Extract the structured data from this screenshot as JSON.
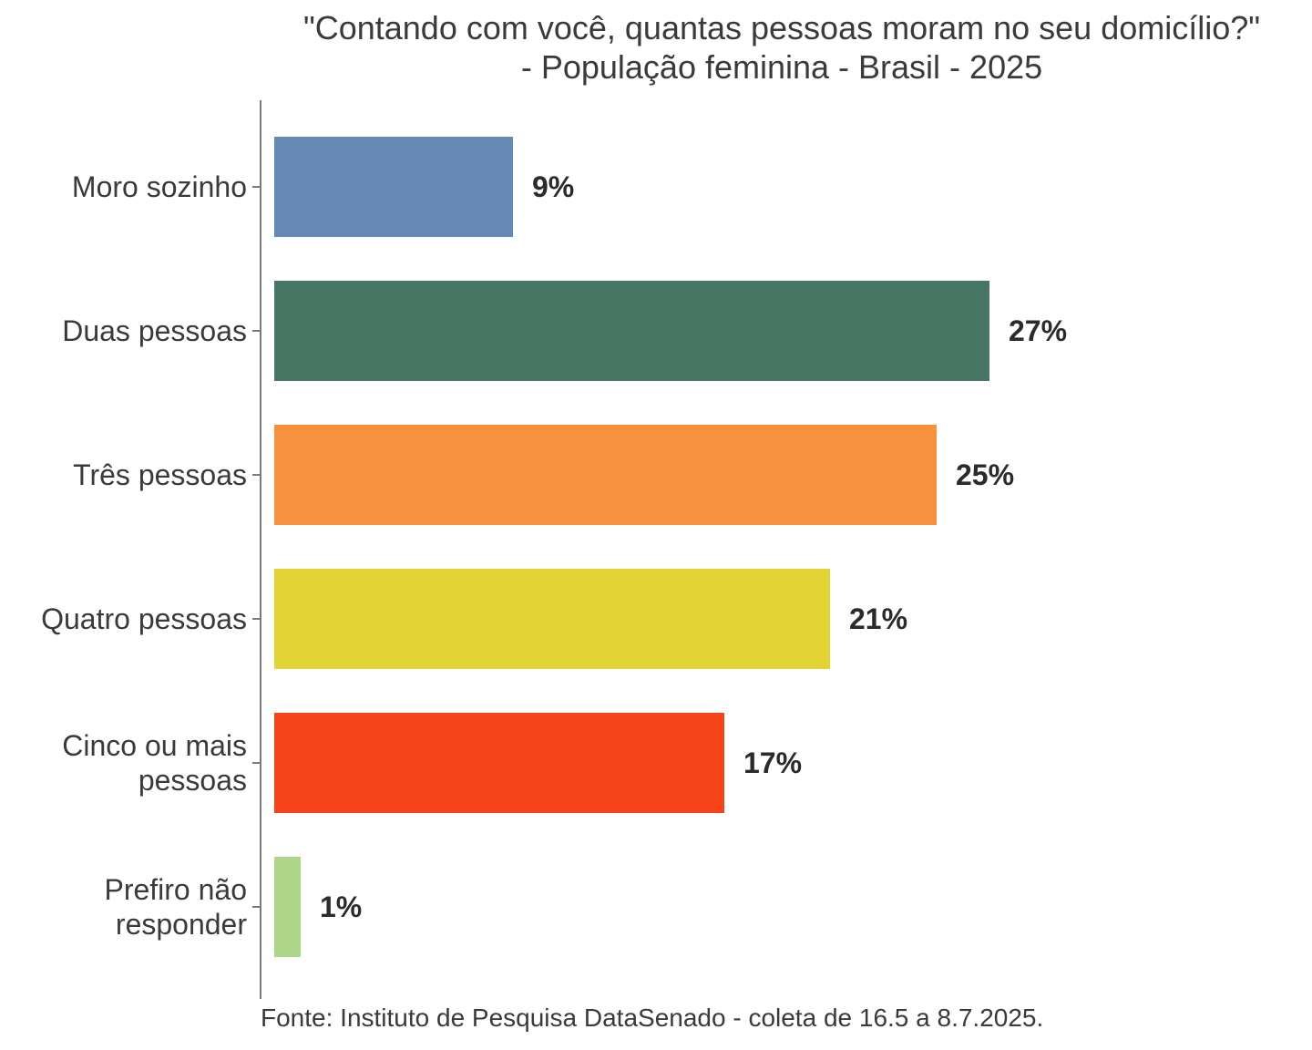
{
  "title": {
    "line1": "\"Contando com você, quantas pessoas moram no seu domicílio?\"",
    "line2": "- População feminina - Brasil - 2025"
  },
  "source": "Fonte: Instituto de Pesquisa DataSenado - coleta de 16.5 a 8.7.2025.",
  "chart_data": {
    "type": "bar",
    "orientation": "horizontal",
    "title": "\"Contando com você, quantas pessoas moram no seu domicílio?\" - População feminina - Brasil - 2025",
    "categories": [
      "Moro sozinho",
      "Duas pessoas",
      "Três pessoas",
      "Quatro pessoas",
      "Cinco ou mais pessoas",
      "Prefiro não responder"
    ],
    "values": [
      9,
      27,
      25,
      21,
      17,
      1
    ],
    "value_labels": [
      "9%",
      "27%",
      "25%",
      "21%",
      "17%",
      "1%"
    ],
    "unit": "%",
    "xlim": [
      0,
      30
    ],
    "grid": false,
    "legend": "none",
    "bar_colors": [
      "#6589B4",
      "#477664",
      "#F7913D",
      "#E3D436",
      "#F5431A",
      "#AED689"
    ],
    "axis_color": "#7A7A7A",
    "text_color": "#3A3A3A",
    "value_label_color": "#2B2B2B",
    "background": "#FFFFFF",
    "caption": "Fonte: Instituto de Pesquisa DataSenado - coleta de 16.5 a 8.7.2025."
  }
}
